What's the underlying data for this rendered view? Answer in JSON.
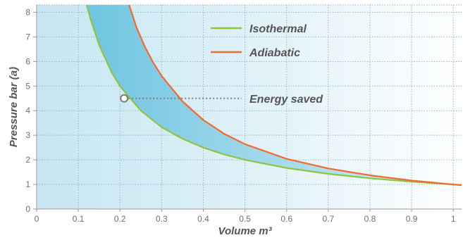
{
  "chart_data": {
    "type": "line",
    "title": "",
    "xlabel": "Volume m³",
    "ylabel": "Pressure bar (a)",
    "xlim": [
      0,
      1.02
    ],
    "ylim": [
      0,
      8.3
    ],
    "x_ticks": [
      "0",
      "0.1",
      "0.2",
      "0.3",
      "0.4",
      "0.5",
      "0.6",
      "0.7",
      "0.8",
      "0.9",
      "1"
    ],
    "y_ticks": [
      "0",
      "1",
      "2",
      "3",
      "4",
      "5",
      "6",
      "7",
      "8"
    ],
    "grid": true,
    "legend_position": "top-right",
    "series": [
      {
        "name": "Isothermal",
        "color": "#8cc63f",
        "x": [
          0.12,
          0.13,
          0.15,
          0.18,
          0.2,
          0.25,
          0.3,
          0.35,
          0.4,
          0.45,
          0.5,
          0.6,
          0.7,
          0.8,
          0.9,
          1.0,
          1.02
        ],
        "y": [
          8.3,
          7.69,
          6.67,
          5.56,
          5.0,
          4.0,
          3.33,
          2.86,
          2.5,
          2.22,
          2.0,
          1.67,
          1.43,
          1.25,
          1.11,
          1.0,
          0.98
        ]
      },
      {
        "name": "Adiabatic",
        "color": "#f26b2a",
        "x": [
          0.222,
          0.24,
          0.26,
          0.28,
          0.3,
          0.35,
          0.4,
          0.45,
          0.5,
          0.6,
          0.7,
          0.8,
          0.9,
          1.0,
          1.02
        ],
        "y": [
          8.3,
          7.37,
          6.59,
          5.95,
          5.41,
          4.38,
          3.62,
          3.06,
          2.64,
          2.04,
          1.65,
          1.37,
          1.16,
          1.0,
          0.97
        ]
      }
    ],
    "annotation": {
      "text": "Energy saved",
      "x": 0.21,
      "y": 4.5
    }
  }
}
